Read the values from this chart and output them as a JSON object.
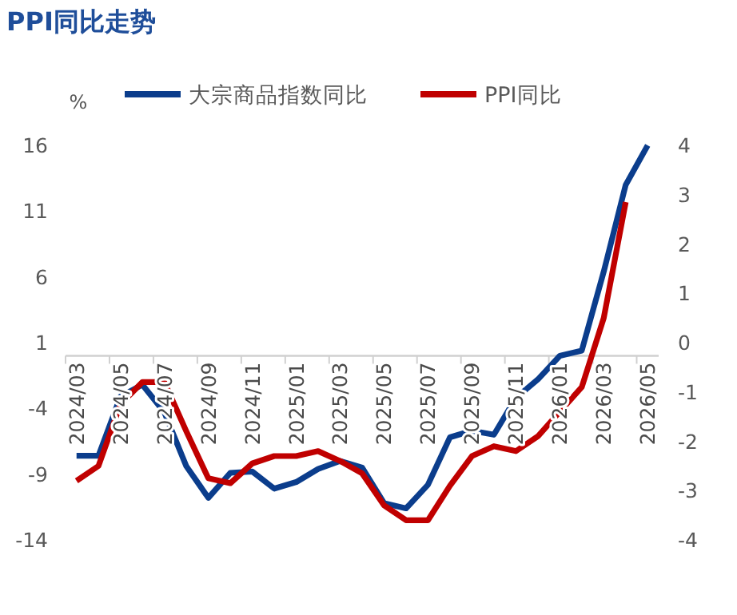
{
  "chart_data": {
    "type": "line",
    "title": "PPI同比走势",
    "ylabel": "%",
    "categories": [
      "2024/03",
      null,
      "2024/05",
      null,
      "2024/07",
      null,
      "2024/09",
      null,
      "2024/11",
      null,
      "2025/01",
      null,
      "2025/03",
      null,
      "2025/05",
      null,
      "2025/07",
      null,
      "2025/09",
      null,
      "2025/11",
      null,
      "2026/01",
      null,
      "2026/03",
      null,
      "2026/05"
    ],
    "series": [
      {
        "name": "大宗商品指数同比",
        "color": "#0b3d8c",
        "values": [
          -7.6,
          -7.6,
          -3.1,
          -2.2,
          -4.3,
          -8.4,
          -10.8,
          -8.9,
          -8.8,
          -10.1,
          -9.6,
          -8.6,
          -8.0,
          -8.5,
          -11.2,
          -11.6,
          -9.8,
          -6.2,
          -5.7,
          -6.0,
          -3.2,
          -1.8,
          0.0,
          0.4,
          6.4,
          13.0,
          16.0
        ]
      },
      {
        "name": "PPI同比",
        "color": "#c00000",
        "axis": "y2",
        "values": [
          -2.8,
          -2.5,
          -1.25,
          -0.8,
          -0.8,
          -1.8,
          -2.75,
          -2.85,
          -2.45,
          -2.3,
          -2.3,
          -2.2,
          -2.4,
          -2.65,
          -3.3,
          -3.6,
          -3.6,
          -2.9,
          -2.3,
          -2.1,
          -2.2,
          -1.9,
          -1.4,
          -0.9,
          0.5,
          2.85,
          null
        ]
      }
    ],
    "ylim": [
      -14,
      16
    ],
    "yticks": [
      16,
      11,
      6,
      1,
      -4,
      -9,
      -14
    ],
    "y2lim": [
      -4,
      4
    ],
    "y2ticks": [
      4,
      3,
      2,
      1,
      0,
      -1,
      -2,
      -3,
      -4
    ],
    "legend": "top"
  }
}
